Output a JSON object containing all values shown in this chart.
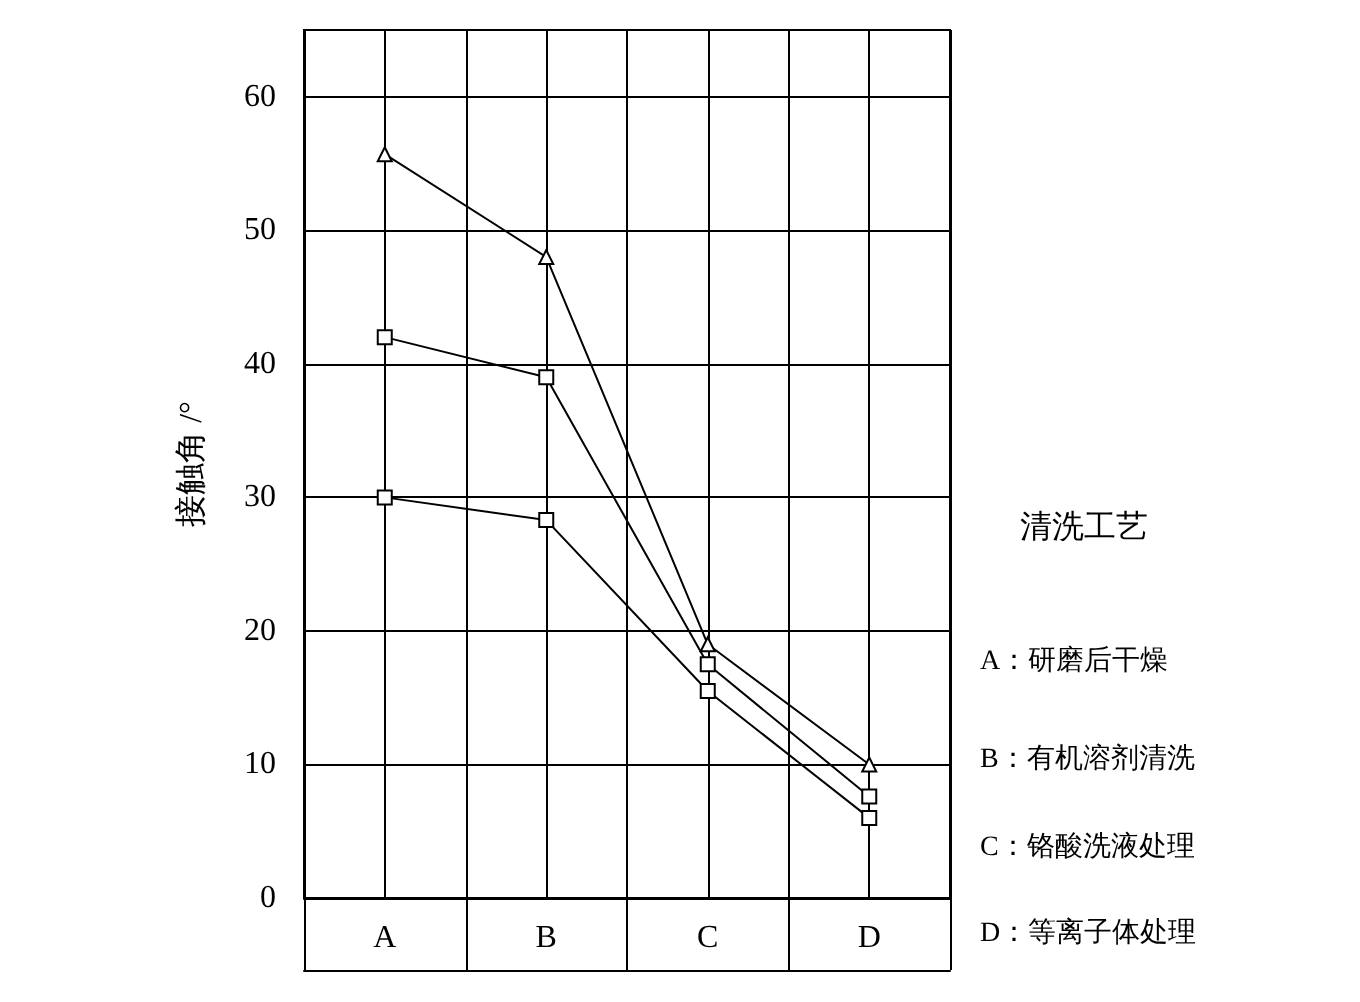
{
  "chart_data": {
    "type": "line",
    "ylabel": "接触角 /°",
    "categories": [
      "A",
      "B",
      "C",
      "D"
    ],
    "series": [
      {
        "color": "#000000",
        "marker": "triangle",
        "values": [
          55.7,
          48,
          19,
          10
        ]
      },
      {
        "color": "#000000",
        "marker": "square",
        "values": [
          42,
          39,
          17.5,
          7.6
        ]
      },
      {
        "color": "#000000",
        "marker": "square",
        "values": [
          30,
          28.3,
          15.5,
          6
        ]
      }
    ],
    "ylim": [
      0,
      65
    ],
    "yticks": [
      0,
      10,
      20,
      30,
      40,
      50,
      60
    ],
    "grid": true,
    "line_style": "solid",
    "annotations": [
      "清洗工艺",
      "A：研磨后干燥",
      "B：有机溶剂清洗",
      "C：铬酸洗液处理",
      "D：等离子体处理"
    ]
  }
}
